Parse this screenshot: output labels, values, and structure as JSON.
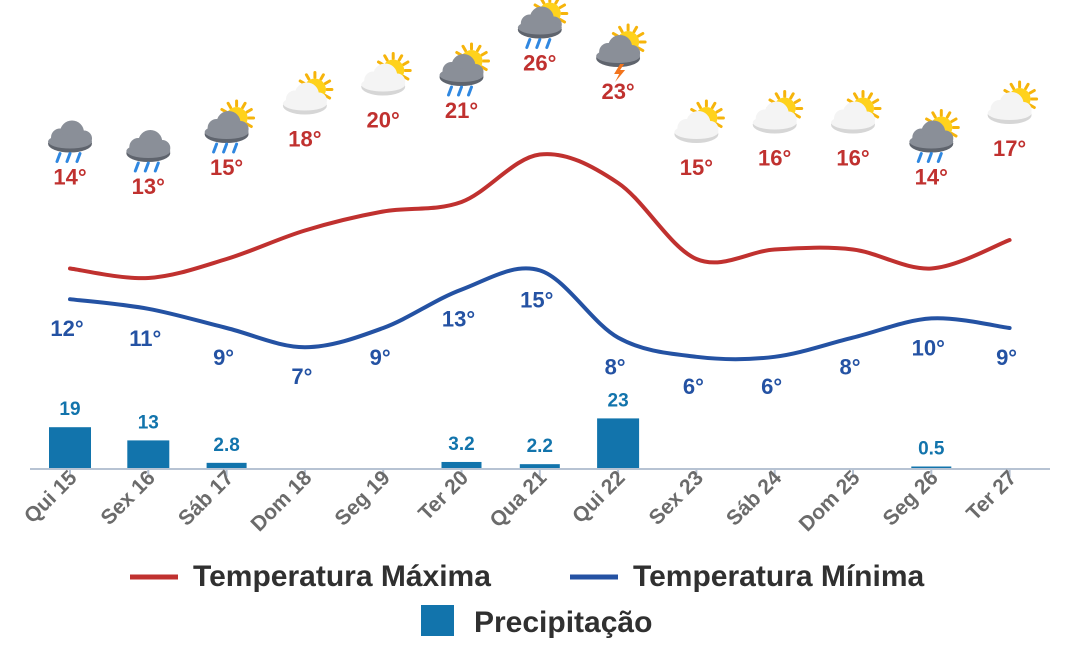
{
  "chart_data": {
    "type": "line",
    "categories": [
      "Qui 15",
      "Sex 16",
      "Sáb 17",
      "Dom 18",
      "Seg 19",
      "Ter 20",
      "Qua 21",
      "Qui 22",
      "Sex 23",
      "Sáb 24",
      "Dom 25",
      "Seg 26",
      "Ter 27"
    ],
    "series": [
      {
        "name": "Temperatura Máxima",
        "type": "line",
        "color": "#c0312f",
        "values": [
          14,
          13,
          15,
          18,
          20,
          21,
          26,
          23,
          15,
          16,
          16,
          14,
          17
        ],
        "labels": [
          "14°",
          "13°",
          "15°",
          "18°",
          "20°",
          "21°",
          "26°",
          "23°",
          "15°",
          "16°",
          "16°",
          "14°",
          "17°"
        ]
      },
      {
        "name": "Temperatura Mínima",
        "type": "line",
        "color": "#2452a3",
        "values": [
          12,
          11,
          9,
          7,
          9,
          13,
          15,
          8,
          6,
          6,
          8,
          10,
          9
        ],
        "labels": [
          "12°",
          "11°",
          "9°",
          "7°",
          "9°",
          "13°",
          "15°",
          "8°",
          "6°",
          "6°",
          "8°",
          "10°",
          "9°"
        ]
      },
      {
        "name": "Precipitação",
        "type": "bar",
        "color": "#1274ac",
        "values": [
          19,
          13,
          2.8,
          0,
          0,
          3.2,
          2.2,
          23,
          0,
          0,
          0,
          0.5,
          0
        ],
        "labels": [
          "19",
          "13",
          "2.8",
          "",
          "",
          "3.2",
          "2.2",
          "23",
          "",
          "",
          "",
          "0.5",
          ""
        ]
      }
    ],
    "icons": [
      "rain-cloud-icon",
      "rain-cloud-icon",
      "sun-rain-cloud-icon",
      "sun-cloud-icon",
      "sun-cloud-icon",
      "sun-rain-cloud-icon",
      "sun-rain-cloud-icon",
      "sun-storm-cloud-icon",
      "sun-cloud-icon",
      "sun-cloud-icon",
      "sun-cloud-icon",
      "sun-rain-cloud-icon",
      "sun-cloud-icon"
    ],
    "legend_position": "bottom",
    "grid": false
  }
}
